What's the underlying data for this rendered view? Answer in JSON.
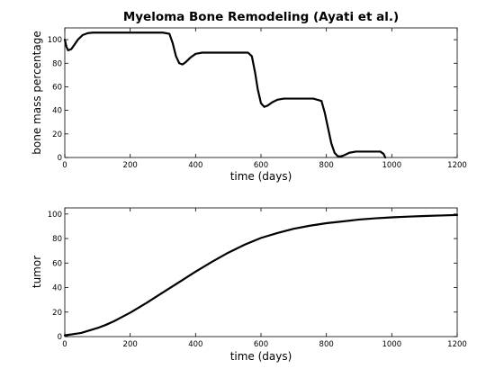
{
  "title": "Myeloma Bone Remodeling (Ayati et al.)",
  "line_color": "#000000",
  "chart_data": [
    {
      "type": "line",
      "xlabel": "time (days)",
      "ylabel": "bone mass percentage",
      "xlim": [
        0,
        1200
      ],
      "ylim": [
        0,
        110
      ],
      "xticks": [
        "0",
        "200",
        "400",
        "600",
        "800",
        "1000",
        "1200"
      ],
      "yticks": [
        "0",
        "20",
        "40",
        "60",
        "80",
        "100"
      ],
      "grid": false,
      "series": [
        {
          "x": [
            0,
            5,
            10,
            20,
            30,
            40,
            55,
            70,
            85,
            100,
            130,
            200,
            300,
            320,
            330,
            340,
            350,
            360,
            370,
            385,
            400,
            420,
            450,
            500,
            560,
            572,
            582,
            590,
            600,
            610,
            620,
            635,
            650,
            670,
            700,
            760,
            785,
            795,
            805,
            815,
            825,
            835,
            845,
            855,
            870,
            890,
            930,
            965,
            975,
            980
          ],
          "y": [
            100,
            94,
            91,
            92,
            96,
            100,
            104,
            105.5,
            106,
            106,
            106,
            106,
            106,
            105,
            97,
            86,
            80,
            79,
            81,
            85,
            88,
            89,
            89,
            89,
            89,
            86,
            72,
            58,
            46,
            43,
            44,
            47,
            49,
            50,
            50,
            50,
            48,
            38,
            25,
            12,
            4,
            1,
            1,
            2,
            4,
            5,
            5,
            5,
            3,
            0
          ]
        }
      ]
    },
    {
      "type": "line",
      "xlabel": "time (days)",
      "ylabel": "tumor",
      "xlim": [
        0,
        1200
      ],
      "ylim": [
        0,
        105
      ],
      "xticks": [
        "0",
        "200",
        "400",
        "600",
        "800",
        "1000",
        "1200"
      ],
      "yticks": [
        "0",
        "20",
        "40",
        "60",
        "80",
        "100"
      ],
      "grid": false,
      "series": [
        {
          "x": [
            0,
            25,
            50,
            75,
            100,
            125,
            150,
            175,
            200,
            250,
            300,
            350,
            400,
            450,
            500,
            550,
            600,
            650,
            700,
            750,
            800,
            850,
            900,
            950,
            1000,
            1050,
            1100,
            1150,
            1200
          ],
          "y": [
            1,
            2,
            3,
            5,
            7,
            9.5,
            12.5,
            16,
            19.5,
            27.5,
            36,
            44.5,
            53,
            61,
            68.5,
            75,
            80.5,
            84.5,
            88,
            90.5,
            92.5,
            94,
            95.5,
            96.5,
            97.3,
            97.9,
            98.4,
            98.8,
            99.2
          ]
        }
      ]
    }
  ]
}
